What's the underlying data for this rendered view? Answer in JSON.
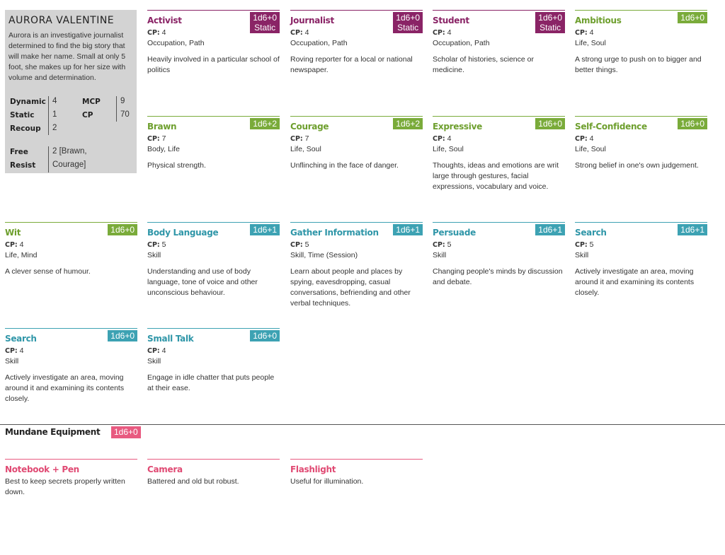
{
  "profile": {
    "name": "AURORA VALENTINE",
    "description": "Aurora is an investigative journalist determined to find the big story that will make her name. Small at only 5 foot, she makes up for her size with volume and determination.",
    "dynamic_label": "Dynamic",
    "dynamic": "4",
    "static_label": "Static",
    "static": "1",
    "recoup_label": "Recoup",
    "recoup": "2",
    "mcp_label": "MCP",
    "mcp": "9",
    "cp_label": "CP",
    "cp": "70",
    "free_label": "Free",
    "resist_label": "Resist",
    "free_resist_1": "2 [Brawn,",
    "free_resist_2": "Courage]"
  },
  "cp_label": "CP:",
  "cards": [
    {
      "title": "Activist",
      "badge1": "1d6+0",
      "badge2": "Static",
      "cp": "4",
      "tags": "Occupation, Path",
      "desc": "Heavily involved in a particular school of politics"
    },
    {
      "title": "Journalist",
      "badge1": "1d6+0",
      "badge2": "Static",
      "cp": "4",
      "tags": "Occupation, Path",
      "desc": "Roving reporter for a local or national newspaper."
    },
    {
      "title": "Student",
      "badge1": "1d6+0",
      "badge2": "Static",
      "cp": "4",
      "tags": "Occupation, Path",
      "desc": "Scholar of histories, science or medicine."
    },
    {
      "title": "Ambitious",
      "badge1": "1d6+0",
      "cp": "4",
      "tags": "Life, Soul",
      "desc": "A strong urge to push on to bigger and better things."
    },
    {
      "title": "Brawn",
      "badge1": "1d6+2",
      "cp": "7",
      "tags": "Body, Life",
      "desc": "Physical strength."
    },
    {
      "title": "Courage",
      "badge1": "1d6+2",
      "cp": "7",
      "tags": "Life, Soul",
      "desc": "Unflinching in the face of danger."
    },
    {
      "title": "Expressive",
      "badge1": "1d6+0",
      "cp": "4",
      "tags": "Life, Soul",
      "desc": "Thoughts, ideas and emotions are writ large through gestures, facial expressions, vocabulary and voice."
    },
    {
      "title": "Self-Confidence",
      "badge1": "1d6+0",
      "cp": "4",
      "tags": "Life, Soul",
      "desc": "Strong belief in one's own judgement."
    },
    {
      "title": "Wit",
      "badge1": "1d6+0",
      "cp": "4",
      "tags": "Life, Mind",
      "desc": "A clever sense of humour."
    },
    {
      "title": "Body Language",
      "badge1": "1d6+1",
      "cp": "5",
      "tags": "Skill",
      "desc": "Understanding and use of body language, tone of voice and other unconscious behaviour."
    },
    {
      "title": "Gather Information",
      "badge1": "1d6+1",
      "cp": "5",
      "tags": "Skill, Time (Session)",
      "desc": "Learn about people and places by spying, eavesdropping, casual conversations, befriending and other verbal techniques."
    },
    {
      "title": "Persuade",
      "badge1": "1d6+1",
      "cp": "5",
      "tags": "Skill",
      "desc": "Changing people's minds by discussion and debate."
    },
    {
      "title": "Search",
      "badge1": "1d6+1",
      "cp": "5",
      "tags": "Skill",
      "desc": "Actively investigate an area, moving around it and examining its contents closely."
    },
    {
      "title": "Search",
      "badge1": "1d6+0",
      "cp": "4",
      "tags": "Skill",
      "desc": "Actively investigate an area, moving around it and examining its contents closely."
    },
    {
      "title": "Small Talk",
      "badge1": "1d6+0",
      "cp": "4",
      "tags": "Skill",
      "desc": "Engage in idle chatter that puts people at their ease."
    }
  ],
  "equipment": {
    "title": "Mundane Equipment",
    "badge": "1d6+0",
    "items": [
      {
        "title": "Notebook + Pen",
        "desc": "Best to keep secrets properly written down."
      },
      {
        "title": "Camera",
        "desc": "Battered and old but robust."
      },
      {
        "title": "Flashlight",
        "desc": "Useful for illumination."
      }
    ]
  },
  "colors": {
    "occupation": "#8a2466",
    "trait": "#7aab3a",
    "skill": "#3da2b3",
    "equipment": "#e85a80",
    "profile_bg": "#d3d3d3"
  }
}
